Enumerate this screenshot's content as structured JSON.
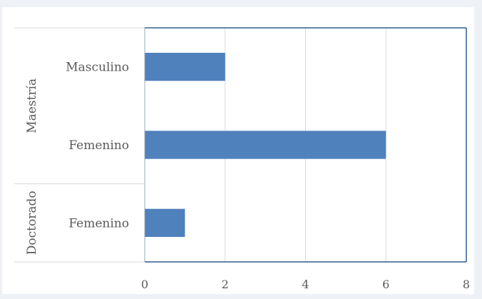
{
  "chart_data": {
    "type": "bar",
    "orientation": "horizontal",
    "title": "",
    "xlabel": "",
    "ylabel": "",
    "xlim": [
      0,
      8
    ],
    "xticks": [
      0,
      2,
      4,
      6,
      8
    ],
    "grid": true,
    "legend": "none",
    "bar_color": "#4f81bd",
    "groups": [
      {
        "label": "Maestría",
        "categories": [
          "Masculino",
          "Femenino"
        ],
        "values": [
          2,
          6
        ]
      },
      {
        "label": "Doctorado",
        "categories": [
          "Femenino"
        ],
        "values": [
          1
        ]
      }
    ]
  }
}
